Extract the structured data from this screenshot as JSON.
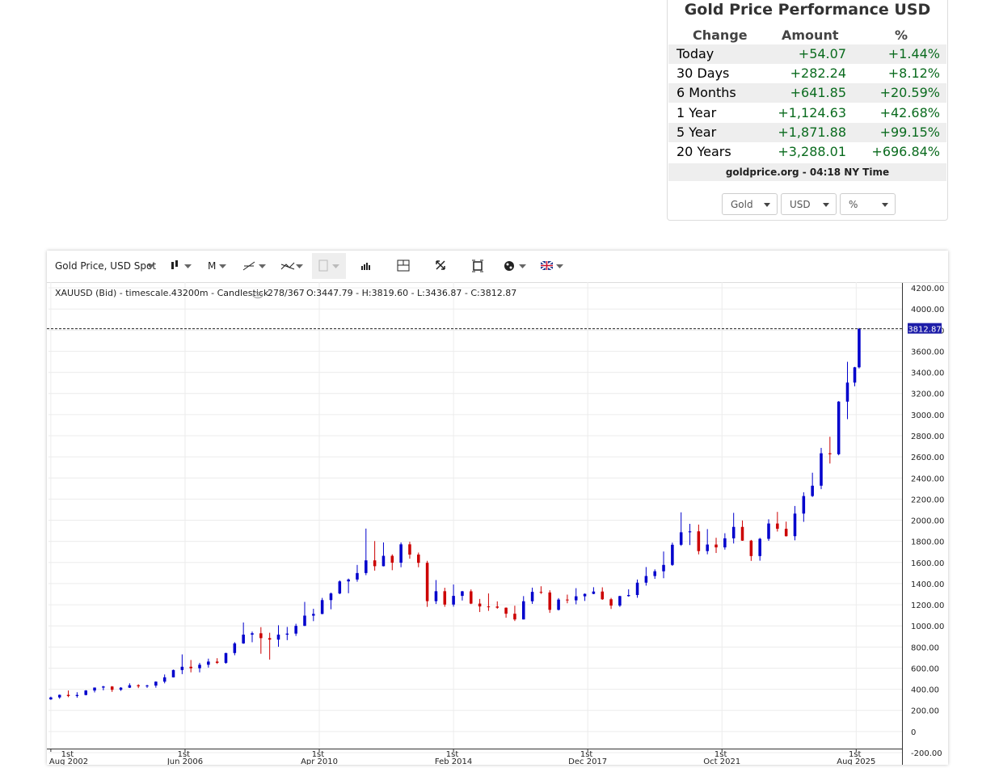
{
  "widget": {
    "title": "Gold Price Performance USD",
    "headers": [
      "Change",
      "Amount",
      "%"
    ],
    "rows": [
      [
        "Today",
        "+54.07",
        "+1.44%"
      ],
      [
        "30 Days",
        "+282.24",
        "+8.12%"
      ],
      [
        "6 Months",
        "+641.85",
        "+20.59%"
      ],
      [
        "1 Year",
        "+1,124.63",
        "+42.68%"
      ],
      [
        "5 Year",
        "+1,871.88",
        "+99.15%"
      ],
      [
        "20 Years",
        "+3,288.01",
        "+696.84%"
      ]
    ],
    "footer": "goldprice.org - 04:18 NY Time",
    "selects": [
      "Gold",
      "USD",
      "%"
    ]
  },
  "toolbar": {
    "instrument": "Gold Price, USD Spot",
    "interval": "M"
  },
  "chart_data": {
    "type": "candlestick",
    "info": "XAUUSD (Bid) - timescale.43200m - Candlestick",
    "count": "278/367",
    "ohlc": "O:3447.79 - H:3819.60 - L:3436.87 - C:3812.87",
    "last_price_label": "3812.87",
    "up_color": "#0000cc",
    "down_color": "#cc0000",
    "grid": true,
    "x": [
      0,
      3,
      6,
      9,
      12,
      15,
      18,
      21,
      24,
      27,
      30,
      33,
      36,
      39,
      42,
      45,
      48,
      51,
      54,
      57,
      60,
      63,
      66,
      69,
      72,
      75,
      78,
      81,
      84,
      87,
      90,
      93,
      96,
      99,
      102,
      105,
      108,
      111,
      114,
      117,
      120,
      123,
      126,
      129,
      132,
      135,
      138,
      141,
      144,
      147,
      150,
      153,
      156,
      159,
      162,
      165,
      168,
      171,
      174,
      177,
      180,
      183,
      186,
      189,
      192,
      195,
      198,
      201,
      204,
      207,
      210,
      213,
      216,
      219,
      222,
      225,
      228,
      231,
      234,
      237,
      240,
      243,
      246,
      249,
      252,
      255,
      258,
      261,
      264,
      267,
      270,
      273,
      275.5,
      277
    ],
    "open": [
      304,
      323,
      347,
      336,
      346,
      388,
      416,
      426,
      395,
      415,
      438,
      428,
      435,
      472,
      513,
      582,
      613,
      599,
      632,
      662,
      650,
      743,
      834,
      917,
      930,
      884,
      870,
      917,
      927,
      1000,
      1097,
      1113,
      1244,
      1307,
      1421,
      1439,
      1500,
      1620,
      1565,
      1663,
      1598,
      1772,
      1675,
      1597,
      1234,
      1328,
      1202,
      1284,
      1327,
      1211,
      1184,
      1183,
      1172,
      1115,
      1061,
      1233,
      1322,
      1316,
      1152,
      1249,
      1242,
      1280,
      1303,
      1325,
      1252,
      1192,
      1282,
      1292,
      1409,
      1472,
      1517,
      1577,
      1768,
      1886,
      1895,
      1708,
      1770,
      1743,
      1829,
      1937,
      1807,
      1661,
      1824,
      1969,
      1919,
      1849,
      2063,
      2229,
      2327,
      2634,
      2625,
      3123,
      3303,
      3447.79
    ],
    "high": [
      330,
      350,
      388,
      372,
      392,
      417,
      432,
      430,
      420,
      456,
      447,
      443,
      475,
      540,
      586,
      730,
      677,
      650,
      690,
      694,
      745,
      846,
      1032,
      946,
      988,
      935,
      1006,
      990,
      1020,
      1227,
      1162,
      1265,
      1315,
      1431,
      1448,
      1577,
      1921,
      1803,
      1790,
      1677,
      1790,
      1796,
      1694,
      1616,
      1434,
      1361,
      1392,
      1331,
      1345,
      1255,
      1307,
      1232,
      1175,
      1191,
      1282,
      1362,
      1375,
      1337,
      1263,
      1296,
      1357,
      1307,
      1366,
      1365,
      1265,
      1285,
      1346,
      1439,
      1557,
      1535,
      1704,
      1788,
      2075,
      1966,
      1959,
      1916,
      1834,
      1877,
      2070,
      1998,
      1814,
      1833,
      2009,
      2079,
      1987,
      2135,
      2265,
      2450,
      2685,
      2790,
      3128,
      3500,
      3452,
      3819.6
    ],
    "low": [
      300,
      310,
      325,
      320,
      342,
      370,
      390,
      375,
      385,
      412,
      411,
      413,
      415,
      456,
      512,
      543,
      560,
      560,
      605,
      640,
      642,
      722,
      830,
      845,
      736,
      681,
      802,
      865,
      905,
      999,
      1045,
      1110,
      1157,
      1300,
      1309,
      1418,
      1480,
      1523,
      1563,
      1527,
      1555,
      1636,
      1555,
      1180,
      1207,
      1181,
      1182,
      1240,
      1206,
      1131,
      1142,
      1162,
      1077,
      1046,
      1061,
      1208,
      1302,
      1123,
      1146,
      1214,
      1204,
      1236,
      1300,
      1246,
      1160,
      1180,
      1276,
      1266,
      1381,
      1445,
      1451,
      1568,
      1757,
      1765,
      1677,
      1678,
      1690,
      1722,
      1780,
      1805,
      1615,
      1617,
      1805,
      1893,
      1846,
      1810,
      1985,
      2220,
      2294,
      2537,
      2615,
      2957,
      3268,
      3436.87
    ],
    "close": [
      323,
      347,
      336,
      346,
      388,
      416,
      426,
      395,
      415,
      438,
      428,
      435,
      472,
      513,
      582,
      613,
      599,
      632,
      662,
      650,
      743,
      834,
      917,
      930,
      884,
      870,
      917,
      927,
      1000,
      1097,
      1113,
      1244,
      1307,
      1421,
      1439,
      1500,
      1620,
      1565,
      1663,
      1598,
      1772,
      1675,
      1597,
      1234,
      1328,
      1202,
      1284,
      1327,
      1211,
      1184,
      1183,
      1172,
      1115,
      1061,
      1233,
      1322,
      1316,
      1152,
      1249,
      1242,
      1280,
      1303,
      1325,
      1252,
      1192,
      1282,
      1292,
      1409,
      1472,
      1517,
      1577,
      1768,
      1886,
      1895,
      1708,
      1770,
      1743,
      1829,
      1937,
      1807,
      1661,
      1824,
      1969,
      1919,
      1849,
      2063,
      2229,
      2327,
      2634,
      2625,
      3123,
      3303,
      3447.79,
      3812.87
    ],
    "xlim": [
      -0.8,
      291.7
    ],
    "ylim": [
      -200,
      4254
    ],
    "xticks": [
      {
        "value": 0,
        "label": "1st Aug 2002"
      },
      {
        "value": 46,
        "label": "1st Jun 2006"
      },
      {
        "value": 92,
        "label": "1st Apr 2010"
      },
      {
        "value": 138,
        "label": "1st Feb 2014"
      },
      {
        "value": 184,
        "label": "1st Dec 2017"
      },
      {
        "value": 230,
        "label": "1st Oct 2021"
      },
      {
        "value": 276,
        "label": "1st Aug 2025"
      }
    ],
    "yticks": [
      {
        "value": 4200,
        "label": "4200.00"
      },
      {
        "value": 4000,
        "label": "4000.00"
      },
      {
        "value": 3800,
        "label": "3800.00"
      },
      {
        "value": 3600,
        "label": "3600.00"
      },
      {
        "value": 3400,
        "label": "3400.00"
      },
      {
        "value": 3200,
        "label": "3200.00"
      },
      {
        "value": 3000,
        "label": "3000.00"
      },
      {
        "value": 2800,
        "label": "2800.00"
      },
      {
        "value": 2600,
        "label": "2600.00"
      },
      {
        "value": 2400,
        "label": "2400.00"
      },
      {
        "value": 2200,
        "label": "2200.00"
      },
      {
        "value": 2000,
        "label": "2000.00"
      },
      {
        "value": 1800,
        "label": "1800.00"
      },
      {
        "value": 1600,
        "label": "1600.00"
      },
      {
        "value": 1400,
        "label": "1400.00"
      },
      {
        "value": 1200,
        "label": "1200.00"
      },
      {
        "value": 1000,
        "label": "1000.00"
      },
      {
        "value": 800,
        "label": "800.00"
      },
      {
        "value": 600,
        "label": "600.00"
      },
      {
        "value": 400,
        "label": "400.00"
      },
      {
        "value": 200,
        "label": "200.00"
      },
      0,
      {
        "value": -200,
        "label": "-200.00"
      }
    ]
  }
}
